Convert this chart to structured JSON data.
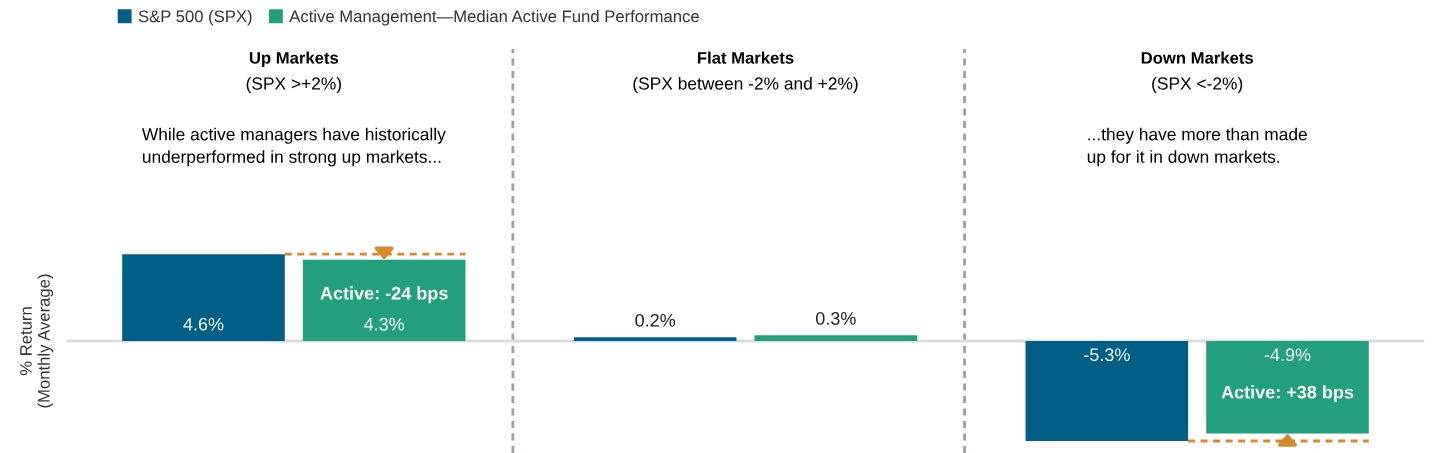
{
  "chart_data": {
    "type": "bar",
    "categories": [
      "Up Markets",
      "Flat Markets",
      "Down Markets"
    ],
    "series": [
      {
        "name": "S&P 500 (SPX)",
        "color": "#005f87",
        "values": [
          4.6,
          0.2,
          -5.3
        ],
        "value_labels": [
          "4.6%",
          "0.2%",
          "-5.3%"
        ]
      },
      {
        "name": "Active Management—Median Active Fund Performance",
        "color": "#22a07e",
        "values": [
          4.3,
          0.3,
          -4.9
        ],
        "value_labels": [
          "4.3%",
          "0.3%",
          "-4.9%"
        ]
      }
    ],
    "ylabel": "% Return\n(Monthly Average)",
    "legend": "top left",
    "tick_labels": "x",
    "annotations": [
      "(SPX >+2%)",
      "(SPX between -2% and +2%)",
      "(SPX <-2%)",
      "While active managers have historically\nunderperformed in strong up markets...",
      "...they have more than made\nup for it in down markets.",
      "Active: -24 bps",
      "Active: +38 bps"
    ]
  }
}
